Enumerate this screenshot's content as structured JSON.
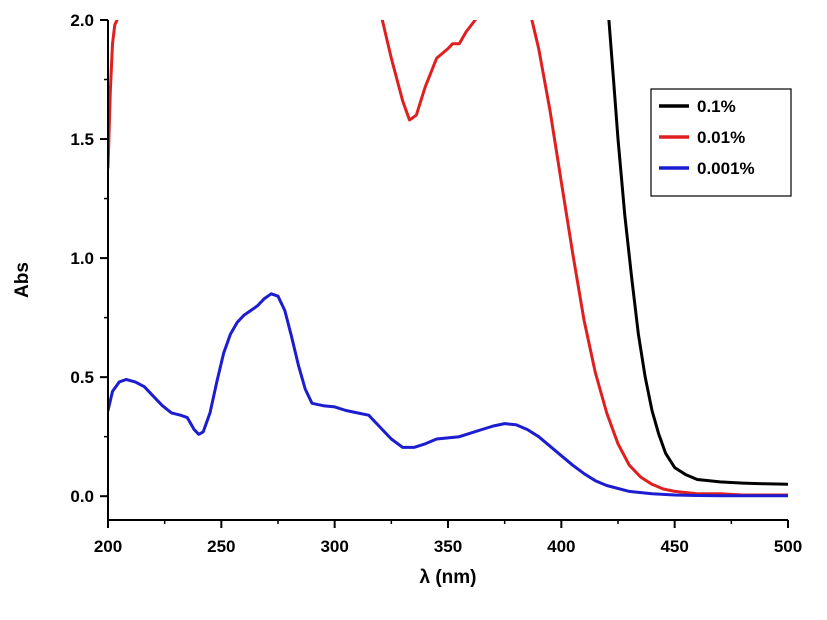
{
  "chart_data": {
    "type": "line",
    "title": "",
    "xlabel": "λ (nm)",
    "ylabel": "Abs",
    "xlim": [
      200,
      500
    ],
    "ylim": [
      -0.1,
      2.0
    ],
    "x_ticks": [
      "200",
      "250",
      "300",
      "350",
      "400",
      "450",
      "500"
    ],
    "y_ticks": [
      "0.0",
      "0.5",
      "1.0",
      "1.5",
      "2.0"
    ],
    "grid": false,
    "legend_position": "top-right",
    "series": [
      {
        "name": "0.1%",
        "color": "#000000",
        "x": [
          421,
          423,
          425,
          428,
          431,
          434,
          437,
          440,
          443,
          446,
          450,
          455,
          460,
          470,
          480,
          490,
          500
        ],
        "y": [
          2.0,
          1.75,
          1.5,
          1.18,
          0.92,
          0.68,
          0.5,
          0.36,
          0.26,
          0.18,
          0.12,
          0.09,
          0.07,
          0.06,
          0.055,
          0.052,
          0.05
        ]
      },
      {
        "name": "0.01%",
        "color": "#e02020",
        "segments": [
          {
            "x": [
              200,
              201,
              202,
              203,
              204
            ],
            "y": [
              1.38,
              1.7,
              1.9,
              1.98,
              2.0
            ]
          },
          {
            "x": [
              321,
              325,
              330,
              333,
              336,
              340,
              345,
              350,
              352,
              355,
              358,
              362
            ],
            "y": [
              2.0,
              1.84,
              1.66,
              1.58,
              1.6,
              1.72,
              1.84,
              1.88,
              1.9,
              1.9,
              1.95,
              2.0
            ]
          },
          {
            "x": [
              387,
              390,
              395,
              400,
              405,
              410,
              415,
              420,
              425,
              430,
              435,
              440,
              445,
              450,
              460,
              470,
              480,
              500
            ],
            "y": [
              2.0,
              1.88,
              1.62,
              1.32,
              1.02,
              0.74,
              0.52,
              0.35,
              0.22,
              0.13,
              0.08,
              0.05,
              0.03,
              0.02,
              0.01,
              0.01,
              0.005,
              0.005
            ]
          }
        ]
      },
      {
        "name": "0.001%",
        "color": "#1c1cd0",
        "x": [
          200,
          202,
          205,
          208,
          212,
          216,
          220,
          224,
          228,
          232,
          235,
          238,
          240,
          242,
          245,
          248,
          251,
          254,
          257,
          260,
          263,
          266,
          269,
          272,
          275,
          278,
          281,
          284,
          287,
          290,
          295,
          300,
          305,
          310,
          315,
          320,
          325,
          330,
          335,
          340,
          345,
          350,
          355,
          360,
          365,
          370,
          375,
          380,
          385,
          390,
          395,
          400,
          405,
          410,
          415,
          420,
          430,
          440,
          450,
          460,
          470,
          480,
          500
        ],
        "y": [
          0.36,
          0.44,
          0.48,
          0.49,
          0.48,
          0.46,
          0.42,
          0.38,
          0.35,
          0.34,
          0.33,
          0.28,
          0.26,
          0.27,
          0.35,
          0.48,
          0.6,
          0.68,
          0.73,
          0.76,
          0.78,
          0.8,
          0.83,
          0.85,
          0.84,
          0.78,
          0.67,
          0.55,
          0.45,
          0.39,
          0.38,
          0.375,
          0.36,
          0.35,
          0.34,
          0.29,
          0.24,
          0.205,
          0.205,
          0.22,
          0.24,
          0.245,
          0.25,
          0.265,
          0.28,
          0.295,
          0.305,
          0.3,
          0.28,
          0.25,
          0.21,
          0.17,
          0.13,
          0.095,
          0.065,
          0.045,
          0.02,
          0.01,
          0.005,
          0.003,
          0.002,
          0.002,
          0.002
        ]
      }
    ]
  }
}
